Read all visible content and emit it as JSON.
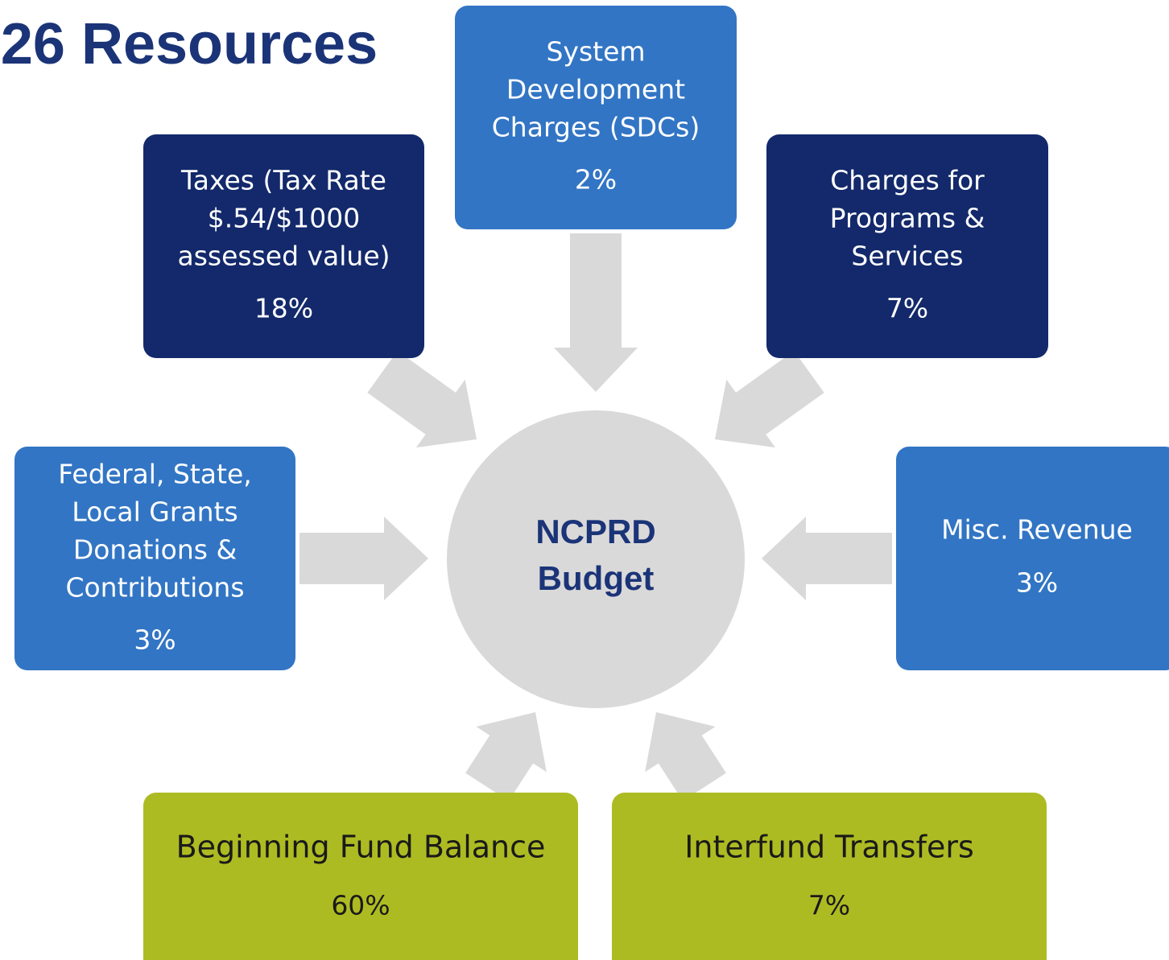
{
  "header": {
    "title": "26 Resources"
  },
  "center": {
    "lines": [
      "NCPRD",
      "Budget"
    ]
  },
  "nodes": [
    {
      "lines": [
        "System",
        "Development",
        "Charges (SDCs)"
      ],
      "value": "2%"
    },
    {
      "lines": [
        "Taxes (Tax Rate",
        "$.54/$1000",
        "assessed value)"
      ],
      "value": "18%"
    },
    {
      "lines": [
        "Charges for",
        "Programs &",
        "Services"
      ],
      "value": "7%"
    },
    {
      "lines": [
        "Federal, State,",
        "Local Grants",
        "Donations &",
        "Contributions"
      ],
      "value": "3%"
    },
    {
      "lines": [
        "Misc. Revenue"
      ],
      "value": "3%"
    },
    {
      "lines": [
        "Beginning Fund Balance"
      ],
      "value": "60%"
    },
    {
      "lines": [
        "Interfund Transfers"
      ],
      "value": "7%"
    }
  ]
}
